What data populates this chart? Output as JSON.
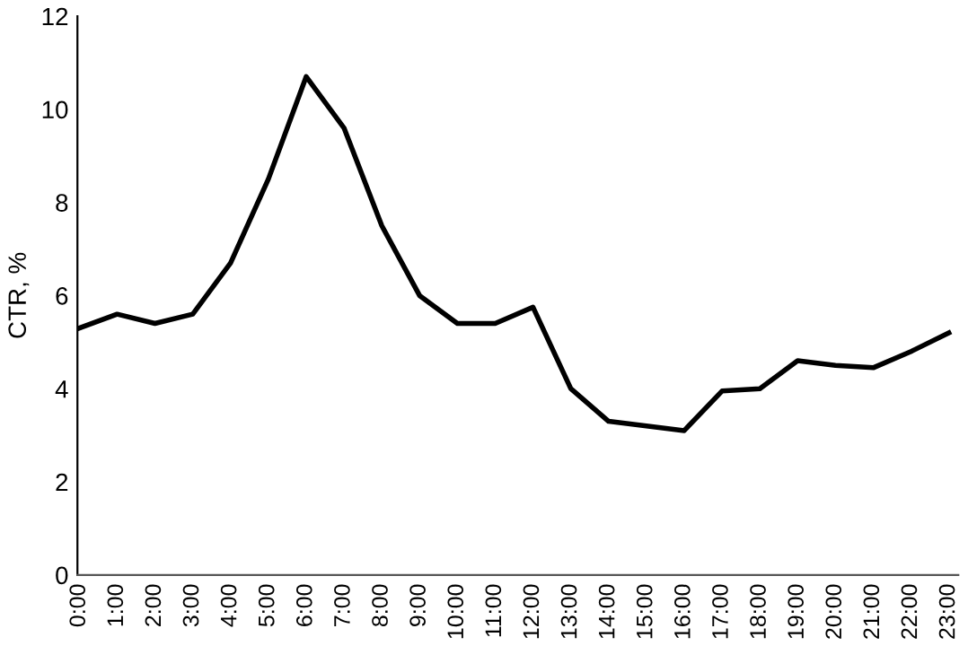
{
  "chart_data": {
    "type": "line",
    "ylabel": "CTR, %",
    "categories": [
      "0:00",
      "1:00",
      "2:00",
      "3:00",
      "4:00",
      "5:00",
      "6:00",
      "7:00",
      "8:00",
      "9:00",
      "10:00",
      "11:00",
      "12:00",
      "13:00",
      "14:00",
      "15:00",
      "16:00",
      "17:00",
      "18:00",
      "19:00",
      "20:00",
      "21:00",
      "22:00",
      "23:00"
    ],
    "series": [
      {
        "color": "#000000",
        "values": [
          5.3,
          5.6,
          5.4,
          5.6,
          6.7,
          8.5,
          10.7,
          9.6,
          7.5,
          6.0,
          5.4,
          5.4,
          5.75,
          4.0,
          3.3,
          3.2,
          3.1,
          3.95,
          4.0,
          4.6,
          4.5,
          4.45,
          4.8,
          5.2
        ]
      }
    ],
    "ylim": [
      0,
      12
    ],
    "yticks": [
      0,
      2,
      4,
      6,
      8,
      10,
      12
    ],
    "grid": false,
    "legend": false,
    "marker": "none",
    "line_style": "solid"
  }
}
